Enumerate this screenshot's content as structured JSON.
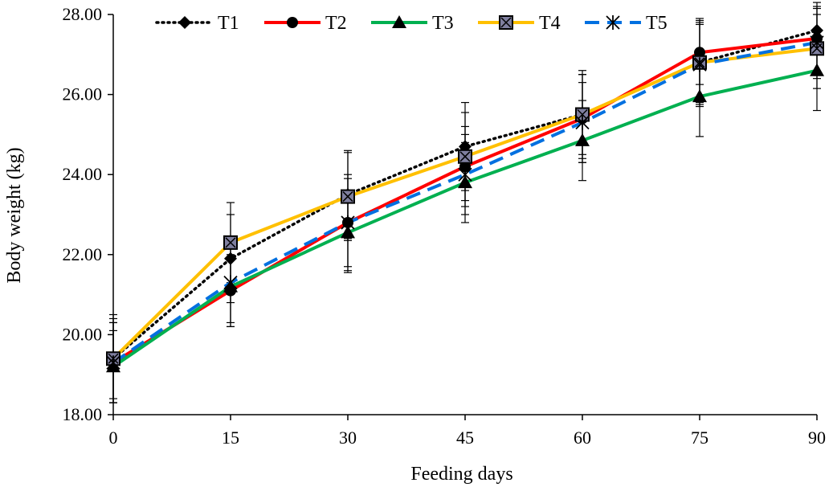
{
  "chart_data": {
    "type": "line",
    "title": "",
    "xlabel": "Feeding days",
    "ylabel": "Body weight (kg)",
    "x": [
      0,
      15,
      30,
      45,
      60,
      75,
      90
    ],
    "x_tick_labels": [
      "0",
      "15",
      "30",
      "45",
      "60",
      "75",
      "90"
    ],
    "ylim": [
      18,
      28
    ],
    "y_ticks": [
      18,
      20,
      22,
      24,
      26,
      28
    ],
    "y_tick_labels": [
      "18.00",
      "20.00",
      "22.00",
      "24.00",
      "26.00",
      "28.00"
    ],
    "grid": false,
    "legend_position": "top",
    "series": [
      {
        "name": "T1",
        "color": "#000000",
        "line_style": "dotted",
        "marker": "diamond",
        "values": [
          19.4,
          21.9,
          23.5,
          24.7,
          25.5,
          26.8,
          27.6
        ],
        "errors": [
          1.1,
          1.1,
          1.1,
          1.1,
          1.1,
          1.1,
          0.4
        ]
      },
      {
        "name": "T2",
        "color": "#ff0000",
        "line_style": "solid",
        "marker": "circle",
        "values": [
          19.3,
          21.1,
          22.8,
          24.2,
          25.4,
          27.05,
          27.4
        ],
        "errors": [
          1.0,
          0.9,
          1.2,
          1.0,
          1.1,
          0.8,
          0.9
        ]
      },
      {
        "name": "T3",
        "color": "#00b050",
        "line_style": "solid",
        "marker": "triangle",
        "values": [
          19.2,
          21.2,
          22.55,
          23.8,
          24.85,
          25.95,
          26.6
        ],
        "errors": [
          0.9,
          1.0,
          1.0,
          1.0,
          1.0,
          1.0,
          1.0
        ]
      },
      {
        "name": "T4",
        "color": "#ffc000",
        "line_style": "solid",
        "marker": "square",
        "values": [
          19.4,
          22.3,
          23.45,
          24.45,
          25.5,
          26.8,
          27.15
        ],
        "errors": [
          1.0,
          1.0,
          1.1,
          1.1,
          1.0,
          1.0,
          1.0
        ]
      },
      {
        "name": "T5",
        "color": "#0070e0",
        "line_style": "dashed",
        "marker": "asterisk",
        "values": [
          19.3,
          21.3,
          22.8,
          24.0,
          25.3,
          26.75,
          27.3
        ],
        "errors": [
          1.0,
          1.0,
          1.1,
          1.0,
          1.0,
          1.0,
          0.9
        ]
      }
    ]
  }
}
